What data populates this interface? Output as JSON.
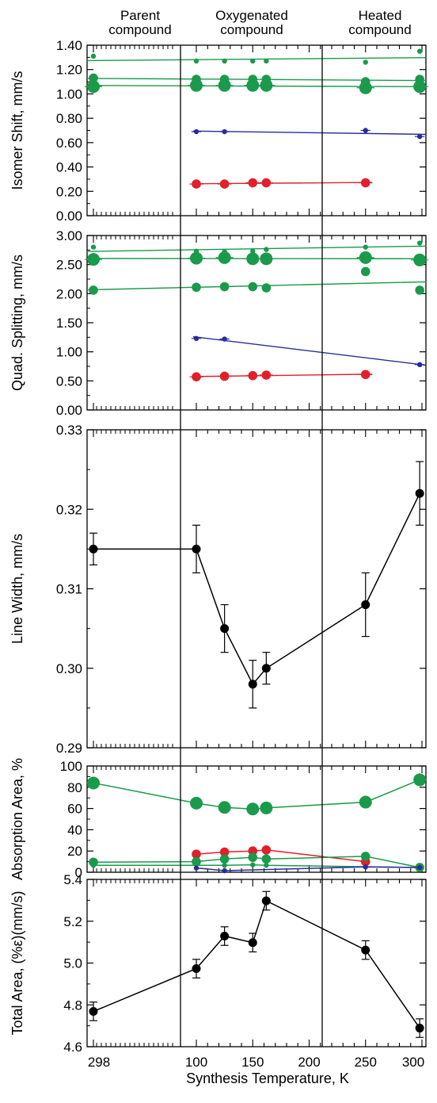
{
  "headers": [
    "Parent\ncompound",
    "Oxygenated\ncompound",
    "Heated\ncompound"
  ],
  "x_axis": {
    "label": "Synthesis Temperature, K",
    "tick_labels": [
      "298",
      "100",
      "150",
      "200",
      "250",
      "300"
    ]
  },
  "colors": {
    "green": "#1a9a4a",
    "blue": "#2b2b9a",
    "red": "#e0202a",
    "black": "#000000"
  },
  "chart_data": [
    {
      "type": "scatter",
      "ylabel": "Isomer Shift, mm/s",
      "ylim": [
        0,
        1.4
      ],
      "yticks": [
        "0.00",
        "0.20",
        "0.40",
        "0.60",
        "0.80",
        "1.00",
        "1.20",
        "1.40"
      ],
      "series": [
        {
          "color": "green",
          "size": "small",
          "x": [
            "298",
            100,
            125,
            150,
            162,
            250,
            298
          ],
          "y": [
            1.31,
            1.27,
            1.27,
            1.27,
            1.27,
            1.26,
            1.35
          ]
        },
        {
          "color": "green",
          "size": "medium",
          "x": [
            "298",
            100,
            125,
            150,
            162,
            250,
            298
          ],
          "y": [
            1.13,
            1.12,
            1.12,
            1.12,
            1.12,
            1.1,
            1.12
          ]
        },
        {
          "color": "green",
          "size": "large",
          "x": [
            "298",
            100,
            125,
            150,
            162,
            250,
            298
          ],
          "y": [
            1.06,
            1.07,
            1.07,
            1.07,
            1.07,
            1.05,
            1.06
          ]
        },
        {
          "color": "blue",
          "size": "small",
          "x": [
            100,
            125,
            250,
            298
          ],
          "y": [
            0.69,
            0.69,
            0.7,
            0.65
          ]
        },
        {
          "color": "red",
          "size": "medium",
          "x": [
            100,
            125,
            150,
            162,
            250
          ],
          "y": [
            0.26,
            0.26,
            0.27,
            0.27,
            0.27
          ]
        }
      ]
    },
    {
      "type": "scatter",
      "ylabel": "Quad. Splitting, mm/s",
      "ylim": [
        0,
        3.0
      ],
      "yticks": [
        "0.00",
        "0.50",
        "1.00",
        "1.50",
        "2.00",
        "2.50",
        "3.00"
      ],
      "series": [
        {
          "color": "green",
          "size": "small",
          "x": [
            "298",
            100,
            125,
            150,
            162,
            250,
            298
          ],
          "y": [
            2.8,
            2.73,
            2.72,
            2.73,
            2.76,
            2.8,
            2.87
          ]
        },
        {
          "color": "green",
          "size": "large",
          "x": [
            "298",
            100,
            125,
            150,
            162,
            250,
            298
          ],
          "y": [
            2.59,
            2.61,
            2.62,
            2.6,
            2.6,
            2.62,
            2.58
          ]
        },
        {
          "color": "green",
          "size": "medium",
          "x": [
            "298",
            100,
            125,
            150,
            162,
            250,
            298
          ],
          "y": [
            2.06,
            2.11,
            2.12,
            2.12,
            2.1,
            2.38,
            2.06
          ]
        },
        {
          "color": "blue",
          "size": "small",
          "x": [
            100,
            125,
            298
          ],
          "y": [
            1.23,
            1.22,
            0.78
          ]
        },
        {
          "color": "red",
          "size": "medium",
          "x": [
            100,
            125,
            150,
            162,
            250
          ],
          "y": [
            0.57,
            0.58,
            0.59,
            0.6,
            0.61
          ]
        }
      ]
    },
    {
      "type": "line",
      "ylabel": "Line Width, mm/s",
      "ylim": [
        0.29,
        0.33
      ],
      "yticks": [
        "0.29",
        "0.30",
        "0.31",
        "0.32",
        "0.33"
      ],
      "series": [
        {
          "color": "black",
          "x": [
            "298",
            100,
            125,
            150,
            162,
            250,
            298
          ],
          "y": [
            0.315,
            0.315,
            0.305,
            0.298,
            0.3,
            0.308,
            0.322
          ],
          "err": [
            0.002,
            0.003,
            0.003,
            0.003,
            0.002,
            0.004,
            0.004
          ]
        }
      ]
    },
    {
      "type": "line",
      "ylabel": "Absorption Area, %",
      "ylim": [
        0,
        100
      ],
      "yticks": [
        "0",
        "20",
        "40",
        "60",
        "80",
        "100"
      ],
      "series": [
        {
          "color": "green",
          "size": "large",
          "x": [
            "298",
            100,
            125,
            150,
            162,
            250,
            298
          ],
          "y": [
            84,
            65,
            61,
            59.5,
            60.5,
            66,
            87
          ]
        },
        {
          "color": "red",
          "size": "medium",
          "x": [
            100,
            125,
            150,
            162,
            250
          ],
          "y": [
            17,
            19,
            20,
            21,
            10
          ]
        },
        {
          "color": "green",
          "size": "medium",
          "x": [
            "298",
            100,
            125,
            150,
            162,
            250,
            298
          ],
          "y": [
            9.5,
            10,
            12.5,
            14,
            12.5,
            15,
            4.5
          ]
        },
        {
          "color": "green",
          "size": "small",
          "x": [
            "298",
            125,
            150,
            162,
            298
          ],
          "y": [
            6.5,
            6.5,
            7,
            6.5,
            4.5
          ]
        },
        {
          "color": "blue",
          "size": "small",
          "x": [
            100,
            125,
            250,
            298
          ],
          "y": [
            4,
            1.5,
            5,
            4.5
          ]
        }
      ]
    },
    {
      "type": "line",
      "ylabel": "Total Area, (%ε)(mm/s)",
      "ylim": [
        4.6,
        5.5
      ],
      "yticks": [
        "4.6",
        "4.8",
        "5.0",
        "5.2",
        "5.4"
      ],
      "series": [
        {
          "color": "black",
          "x": [
            "298",
            100,
            125,
            150,
            162,
            250,
            298
          ],
          "y": [
            4.79,
            5.02,
            5.195,
            5.16,
            5.385,
            5.12,
            4.7
          ],
          "err": [
            0.05,
            0.05,
            0.05,
            0.05,
            0.05,
            0.05,
            0.05
          ]
        }
      ]
    }
  ]
}
